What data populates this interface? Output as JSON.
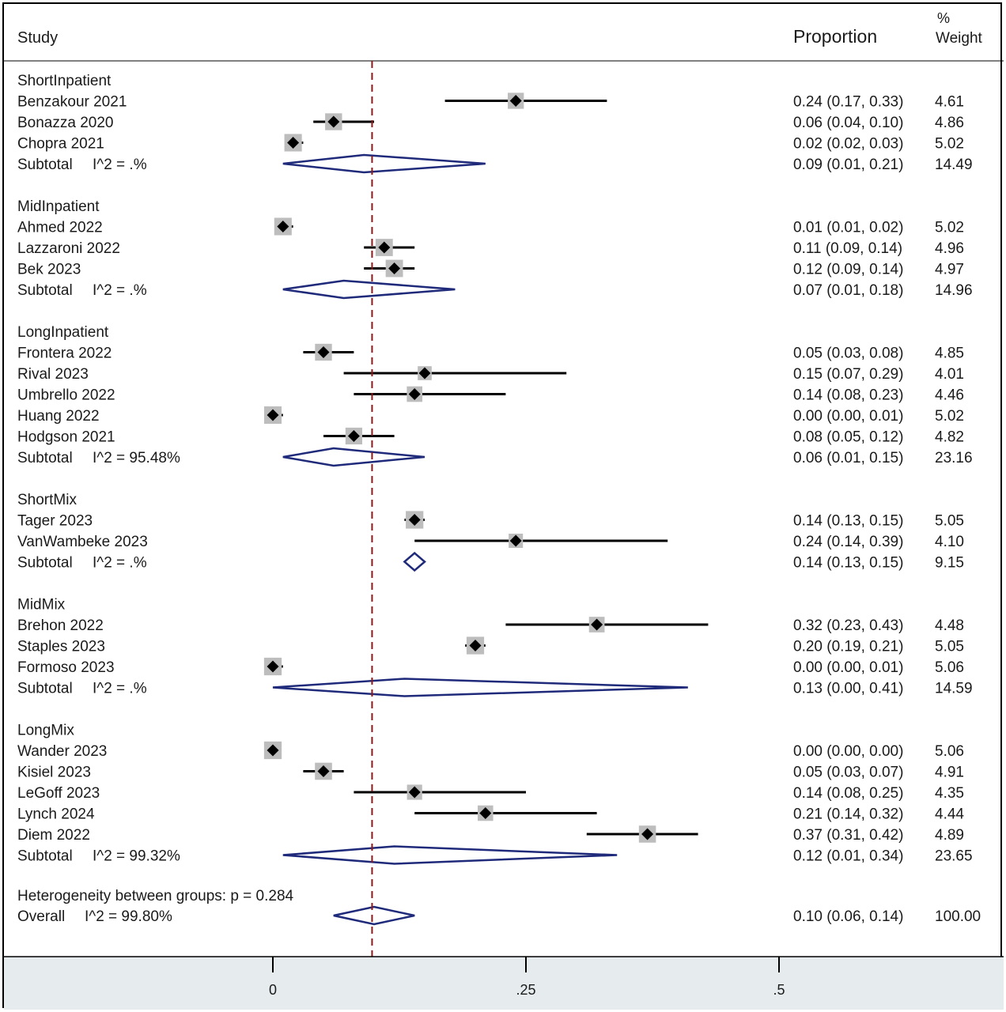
{
  "chart_data": {
    "type": "forest",
    "header": {
      "study": "Study",
      "proportion": "Proportion",
      "weight_line1": "%",
      "weight_line2": "Weight"
    },
    "xaxis": {
      "ticks": [
        0,
        0.25,
        0.5
      ],
      "tick_labels": [
        "0",
        ".25",
        ".5"
      ],
      "xlim": [
        -0.27,
        0.72
      ]
    },
    "reference_line": 0.098,
    "reference_color": "#8B1A1A",
    "ci_color": "#000000",
    "diamond_color": "#1F2A7A",
    "weight_box_color": "#BDBDBD",
    "axis_band_color": "#E6ECEE",
    "groups": [
      {
        "name": "ShortInpatient",
        "studies": [
          {
            "label": "Benzakour 2021",
            "est": 0.24,
            "lo": 0.17,
            "hi": 0.33,
            "text": "0.24 (0.17, 0.33)",
            "weight": "4.61"
          },
          {
            "label": "Bonazza 2020",
            "est": 0.06,
            "lo": 0.04,
            "hi": 0.1,
            "text": "0.06 (0.04, 0.10)",
            "weight": "4.86"
          },
          {
            "label": "Chopra 2021",
            "est": 0.02,
            "lo": 0.02,
            "hi": 0.03,
            "text": "0.02 (0.02, 0.03)",
            "weight": "5.02"
          }
        ],
        "subtotal": {
          "label": "Subtotal",
          "i2": "I^2 = .%",
          "est": 0.09,
          "lo": 0.01,
          "hi": 0.21,
          "text": "0.09 (0.01, 0.21)",
          "weight": "14.49"
        }
      },
      {
        "name": "MidInpatient",
        "studies": [
          {
            "label": "Ahmed 2022",
            "est": 0.01,
            "lo": 0.01,
            "hi": 0.02,
            "text": "0.01 (0.01, 0.02)",
            "weight": "5.02"
          },
          {
            "label": "Lazzaroni 2022",
            "est": 0.11,
            "lo": 0.09,
            "hi": 0.14,
            "text": "0.11 (0.09, 0.14)",
            "weight": "4.96"
          },
          {
            "label": "Bek 2023",
            "est": 0.12,
            "lo": 0.09,
            "hi": 0.14,
            "text": "0.12 (0.09, 0.14)",
            "weight": "4.97"
          }
        ],
        "subtotal": {
          "label": "Subtotal",
          "i2": "I^2 = .%",
          "est": 0.07,
          "lo": 0.01,
          "hi": 0.18,
          "text": "0.07 (0.01, 0.18)",
          "weight": "14.96"
        }
      },
      {
        "name": "LongInpatient",
        "studies": [
          {
            "label": "Frontera 2022",
            "est": 0.05,
            "lo": 0.03,
            "hi": 0.08,
            "text": "0.05 (0.03, 0.08)",
            "weight": "4.85"
          },
          {
            "label": "Rival 2023",
            "est": 0.15,
            "lo": 0.07,
            "hi": 0.29,
            "text": "0.15 (0.07, 0.29)",
            "weight": "4.01"
          },
          {
            "label": "Umbrello 2022",
            "est": 0.14,
            "lo": 0.08,
            "hi": 0.23,
            "text": "0.14 (0.08, 0.23)",
            "weight": "4.46"
          },
          {
            "label": "Huang 2022",
            "est": 0.0,
            "lo": 0.0,
            "hi": 0.01,
            "text": "0.00 (0.00, 0.01)",
            "weight": "5.02"
          },
          {
            "label": "Hodgson 2021",
            "est": 0.08,
            "lo": 0.05,
            "hi": 0.12,
            "text": "0.08 (0.05, 0.12)",
            "weight": "4.82"
          }
        ],
        "subtotal": {
          "label": "Subtotal",
          "i2": "I^2 = 95.48%",
          "est": 0.06,
          "lo": 0.01,
          "hi": 0.15,
          "text": "0.06 (0.01, 0.15)",
          "weight": "23.16"
        }
      },
      {
        "name": "ShortMix",
        "studies": [
          {
            "label": "Tager 2023",
            "est": 0.14,
            "lo": 0.13,
            "hi": 0.15,
            "text": "0.14 (0.13, 0.15)",
            "weight": "5.05"
          },
          {
            "label": "VanWambeke 2023",
            "est": 0.24,
            "lo": 0.14,
            "hi": 0.39,
            "text": "0.24 (0.14, 0.39)",
            "weight": "4.10"
          }
        ],
        "subtotal": {
          "label": "Subtotal",
          "i2": "I^2 = .%",
          "est": 0.14,
          "lo": 0.13,
          "hi": 0.15,
          "text": "0.14 (0.13, 0.15)",
          "weight": "9.15"
        }
      },
      {
        "name": "MidMix",
        "studies": [
          {
            "label": "Brehon 2022",
            "est": 0.32,
            "lo": 0.23,
            "hi": 0.43,
            "text": "0.32 (0.23, 0.43)",
            "weight": "4.48"
          },
          {
            "label": "Staples 2023",
            "est": 0.2,
            "lo": 0.19,
            "hi": 0.21,
            "text": "0.20 (0.19, 0.21)",
            "weight": "5.05"
          },
          {
            "label": "Formoso 2023",
            "est": 0.0,
            "lo": 0.0,
            "hi": 0.01,
            "text": "0.00 (0.00, 0.01)",
            "weight": "5.06"
          }
        ],
        "subtotal": {
          "label": "Subtotal",
          "i2": "I^2 = .%",
          "est": 0.13,
          "lo": 0.0,
          "hi": 0.41,
          "text": "0.13 (0.00, 0.41)",
          "weight": "14.59"
        }
      },
      {
        "name": "LongMix",
        "studies": [
          {
            "label": "Wander 2023",
            "est": 0.0,
            "lo": 0.0,
            "hi": 0.0,
            "text": "0.00 (0.00, 0.00)",
            "weight": "5.06"
          },
          {
            "label": "Kisiel 2023",
            "est": 0.05,
            "lo": 0.03,
            "hi": 0.07,
            "text": "0.05 (0.03, 0.07)",
            "weight": "4.91"
          },
          {
            "label": "LeGoff 2023",
            "est": 0.14,
            "lo": 0.08,
            "hi": 0.25,
            "text": "0.14 (0.08, 0.25)",
            "weight": "4.35"
          },
          {
            "label": "Lynch 2024",
            "est": 0.21,
            "lo": 0.14,
            "hi": 0.32,
            "text": "0.21 (0.14, 0.32)",
            "weight": "4.44"
          },
          {
            "label": "Diem 2022",
            "est": 0.37,
            "lo": 0.31,
            "hi": 0.42,
            "text": "0.37 (0.31, 0.42)",
            "weight": "4.89"
          }
        ],
        "subtotal": {
          "label": "Subtotal",
          "i2": "I^2 = 99.32%",
          "est": 0.12,
          "lo": 0.01,
          "hi": 0.34,
          "text": "0.12 (0.01, 0.34)",
          "weight": "23.65"
        }
      }
    ],
    "heterogeneity_text": "Heterogeneity between groups: p = 0.284",
    "overall": {
      "label": "Overall",
      "i2": "I^2 = 99.80%",
      "est": 0.1,
      "lo": 0.06,
      "hi": 0.14,
      "text": "0.10 (0.06, 0.14)",
      "weight": "100.00"
    }
  }
}
